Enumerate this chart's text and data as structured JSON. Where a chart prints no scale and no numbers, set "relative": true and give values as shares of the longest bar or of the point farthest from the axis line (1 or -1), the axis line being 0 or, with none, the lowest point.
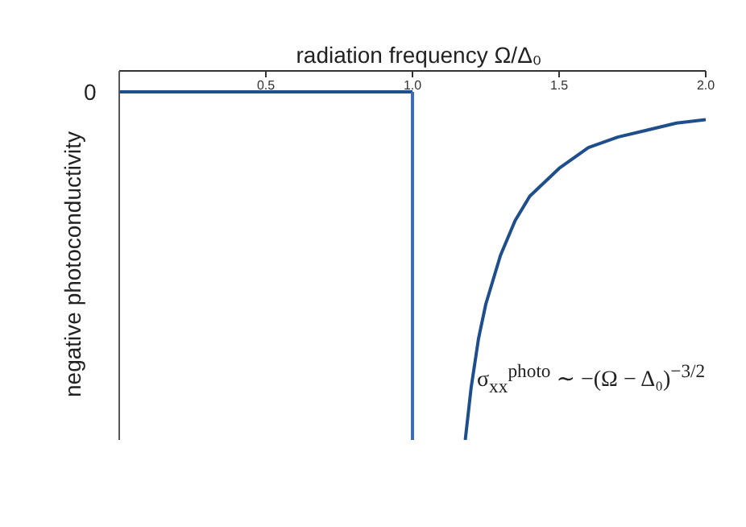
{
  "chart_data": {
    "type": "line",
    "relative": true,
    "xlabel": "radiation frequency  Ω/Δ₀",
    "ylabel": "negative photoconductivity",
    "xlim": [
      0,
      2
    ],
    "xticks": [
      0.5,
      {
        "value": 1,
        "label": "1.0"
      },
      1.5,
      {
        "value": 2,
        "label": "2.0"
      }
    ],
    "annotations": [
      "0",
      "σ$_{xx}$$^{photo}$ ∼ −(Ω − Δ₀)$^{−3/2}$"
    ],
    "marker": "none",
    "series": [
      {
        "color": "#1f4e8c",
        "x": [
          0,
          1
        ],
        "values": [
          0,
          0
        ]
      },
      {
        "color": "#3d6db5",
        "x": [
          1,
          1
        ],
        "values": [
          0,
          -1
        ]
      },
      {
        "color": "#1f4e8c",
        "x": [
          1.18,
          1.2,
          1.225,
          1.25,
          1.3,
          1.35,
          1.4,
          1.5,
          1.6,
          1.7,
          1.8,
          1.9,
          2.0
        ],
        "values": [
          -1,
          -0.85,
          -0.71,
          -0.61,
          -0.47,
          -0.37,
          -0.3,
          -0.22,
          -0.16,
          -0.13,
          -0.11,
          -0.09,
          -0.08
        ]
      }
    ]
  }
}
